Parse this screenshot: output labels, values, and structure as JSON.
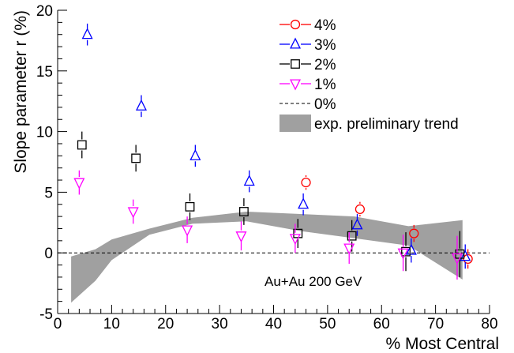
{
  "chart_data": {
    "type": "scatter",
    "xlabel": "% Most Central",
    "ylabel": "Slope parameter r (%)",
    "xlim": [
      0,
      80
    ],
    "ylim": [
      -5,
      20
    ],
    "x_ticks": [
      0,
      10,
      20,
      30,
      40,
      50,
      60,
      70,
      80
    ],
    "y_ticks": [
      -5,
      0,
      5,
      10,
      15,
      20
    ],
    "grid": false,
    "legend_placement": "top-right",
    "annotation": "Au+Au 200 GeV",
    "series": [
      {
        "name": "4%",
        "marker": "open-circle",
        "color": "#ff0000",
        "points": [
          {
            "x": 46,
            "y": 5.8,
            "err": 0.6
          },
          {
            "x": 56,
            "y": 3.6,
            "err": 0.6
          },
          {
            "x": 66,
            "y": 1.6,
            "err": 0.7
          },
          {
            "x": 76,
            "y": -0.5,
            "err": 0.8
          }
        ]
      },
      {
        "name": "3%",
        "marker": "open-triangle-up",
        "color": "#0000ff",
        "points": [
          {
            "x": 5.5,
            "y": 18.0,
            "err": 0.9
          },
          {
            "x": 15.5,
            "y": 12.1,
            "err": 0.9
          },
          {
            "x": 25.5,
            "y": 8.0,
            "err": 0.9
          },
          {
            "x": 35.5,
            "y": 5.9,
            "err": 0.9
          },
          {
            "x": 45.5,
            "y": 4.0,
            "err": 0.9
          },
          {
            "x": 55.5,
            "y": 2.3,
            "err": 0.9
          },
          {
            "x": 65.5,
            "y": 0.2,
            "err": 1.0
          },
          {
            "x": 75.5,
            "y": -0.3,
            "err": 1.0
          }
        ]
      },
      {
        "name": "2%",
        "marker": "open-square",
        "color": "#000000",
        "points": [
          {
            "x": 4.5,
            "y": 8.9,
            "err": 1.1
          },
          {
            "x": 14.5,
            "y": 7.8,
            "err": 1.1
          },
          {
            "x": 24.5,
            "y": 3.8,
            "err": 1.1
          },
          {
            "x": 34.5,
            "y": 3.4,
            "err": 1.1
          },
          {
            "x": 44.5,
            "y": 1.6,
            "err": 1.2
          },
          {
            "x": 54.5,
            "y": 1.4,
            "err": 1.3
          },
          {
            "x": 64.5,
            "y": 0.1,
            "err": 1.6
          },
          {
            "x": 74.5,
            "y": -0.1,
            "err": 1.9
          }
        ]
      },
      {
        "name": "1%",
        "marker": "open-triangle-down",
        "color": "#ff00ff",
        "points": [
          {
            "x": 4.0,
            "y": 5.8,
            "err": 1.0
          },
          {
            "x": 14.0,
            "y": 3.4,
            "err": 1.0
          },
          {
            "x": 24.0,
            "y": 1.9,
            "err": 1.1
          },
          {
            "x": 34.0,
            "y": 1.4,
            "err": 1.2
          },
          {
            "x": 44.0,
            "y": 1.2,
            "err": 1.2
          },
          {
            "x": 54.0,
            "y": 0.4,
            "err": 1.3
          },
          {
            "x": 64.0,
            "y": 0.0,
            "err": 1.5
          },
          {
            "x": 74.0,
            "y": -0.4,
            "err": 1.8
          }
        ]
      },
      {
        "name": "0%",
        "marker": "dashed-line",
        "color": "#000000",
        "y": 0
      }
    ],
    "band": {
      "name": "exp. preliminary trend",
      "color": "#a0a0a0",
      "upper": [
        [
          2.5,
          -0.3
        ],
        [
          7,
          0.3
        ],
        [
          10,
          1.1
        ],
        [
          17,
          2.0
        ],
        [
          25,
          2.9
        ],
        [
          35,
          3.4
        ],
        [
          45,
          3.2
        ],
        [
          55,
          3.0
        ],
        [
          65,
          2.2
        ],
        [
          75,
          2.7
        ]
      ],
      "lower": [
        [
          2.5,
          -4.1
        ],
        [
          7,
          -2.3
        ],
        [
          10,
          -0.6
        ],
        [
          17,
          1.5
        ],
        [
          25,
          2.4
        ],
        [
          35,
          2.6
        ],
        [
          45,
          1.8
        ],
        [
          55,
          1.2
        ],
        [
          65,
          0.6
        ],
        [
          75,
          -2.2
        ]
      ]
    }
  }
}
